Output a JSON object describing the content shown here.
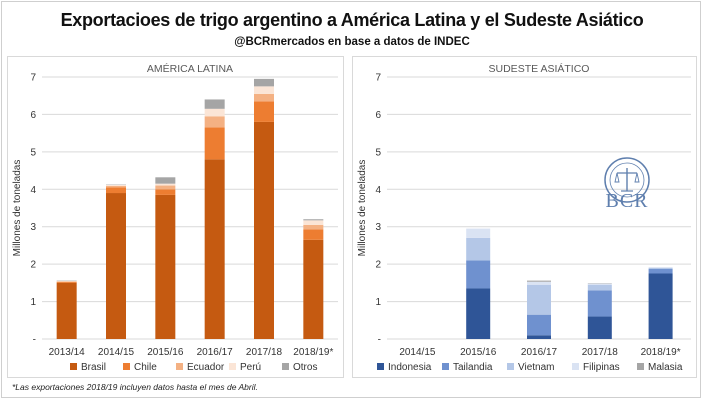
{
  "header": {
    "title": "Exportacioes de trigo argentino a América Latina y el Sudeste Asiático",
    "subtitle": "@BCRmercados en base a datos de INDEC"
  },
  "footnote": "*Las exportaciones 2018/19 incluyen datos hasta el mes de Abril.",
  "logo": {
    "text": "BCR",
    "icon": "bcr-seal-icon",
    "color": "#5f7fae"
  },
  "chart_data": [
    {
      "type": "bar",
      "stacked": true,
      "title": "AMÉRICA LATINA",
      "ylabel": "Millones de toneladas",
      "ylim": [
        0,
        7
      ],
      "yticks": [
        "-",
        "1",
        "2",
        "3",
        "4",
        "5",
        "6",
        "7"
      ],
      "grid": true,
      "legend": "bottom",
      "categories": [
        "2013/14",
        "2014/15",
        "2015/16",
        "2016/17",
        "2017/18",
        "2018/19*"
      ],
      "series": [
        {
          "name": "Brasil",
          "color": "#c55a11",
          "values": [
            1.5,
            3.9,
            3.85,
            4.8,
            5.8,
            2.65
          ]
        },
        {
          "name": "Chile",
          "color": "#ed7d31",
          "values": [
            0.03,
            0.15,
            0.15,
            0.85,
            0.55,
            0.28
          ]
        },
        {
          "name": "Ecuador",
          "color": "#f4b183",
          "values": [
            0.01,
            0.04,
            0.1,
            0.3,
            0.2,
            0.12
          ]
        },
        {
          "name": "Perú",
          "color": "#fbe5d6",
          "values": [
            0.01,
            0.03,
            0.05,
            0.2,
            0.2,
            0.12
          ]
        },
        {
          "name": "Otros",
          "color": "#a5a5a5",
          "values": [
            0.01,
            0.01,
            0.17,
            0.25,
            0.2,
            0.03
          ]
        }
      ]
    },
    {
      "type": "bar",
      "stacked": true,
      "title": "SUDESTE ASIÁTICO",
      "ylabel": "Millones de toneladas",
      "ylim": [
        0,
        7
      ],
      "yticks": [
        "-",
        "1",
        "2",
        "3",
        "4",
        "5",
        "6",
        "7"
      ],
      "grid": true,
      "legend": "bottom",
      "categories": [
        "2014/15",
        "2015/16",
        "2016/17",
        "2017/18",
        "2018/19*"
      ],
      "series": [
        {
          "name": "Indonesia",
          "color": "#2f5597",
          "values": [
            0,
            1.35,
            0.1,
            0.6,
            1.75
          ]
        },
        {
          "name": "Tailandia",
          "color": "#6f91cf",
          "values": [
            0,
            0.75,
            0.55,
            0.7,
            0.12
          ]
        },
        {
          "name": "Vietnam",
          "color": "#b4c7e7",
          "values": [
            0,
            0.6,
            0.8,
            0.15,
            0.03
          ]
        },
        {
          "name": "Filipinas",
          "color": "#dae3f3",
          "values": [
            0,
            0.25,
            0.08,
            0.03,
            0.02
          ]
        },
        {
          "name": "Malasia",
          "color": "#a5a5a5",
          "values": [
            0,
            0.0,
            0.03,
            0.01,
            0.0
          ]
        }
      ]
    }
  ]
}
